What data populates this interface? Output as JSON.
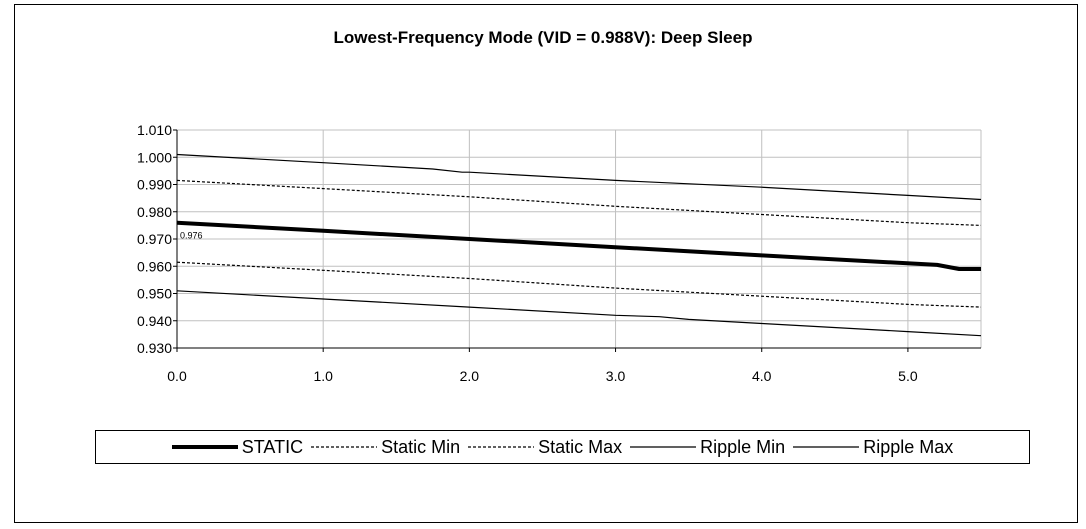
{
  "chart_data": {
    "type": "line",
    "title": "Lowest-Frequency Mode (VID = 0.988V): Deep Sleep",
    "xlabel": "",
    "ylabel": "",
    "xlim": [
      0,
      5.5
    ],
    "ylim": [
      0.93,
      1.01
    ],
    "xticks": [
      "0.0",
      "1.0",
      "2.0",
      "3.0",
      "4.0",
      "5.0"
    ],
    "yticks": [
      "1.010",
      "1.000",
      "0.990",
      "0.980",
      "0.970",
      "0.960",
      "0.950",
      "0.940",
      "0.930"
    ],
    "grid": true,
    "legend_position": "bottom",
    "annotations": [
      {
        "text": "0.976",
        "x": 0.0,
        "y": 0.976
      }
    ],
    "series": [
      {
        "name": "STATIC",
        "style": "thick-solid",
        "points": [
          [
            0.0,
            0.976
          ],
          [
            1.0,
            0.973
          ],
          [
            2.0,
            0.97
          ],
          [
            3.0,
            0.967
          ],
          [
            4.0,
            0.964
          ],
          [
            5.2,
            0.9605
          ],
          [
            5.35,
            0.959
          ],
          [
            5.5,
            0.959
          ]
        ]
      },
      {
        "name": "Static Min",
        "style": "dashed",
        "points": [
          [
            0.0,
            0.9615
          ],
          [
            1.0,
            0.9585
          ],
          [
            2.0,
            0.9555
          ],
          [
            3.0,
            0.952
          ],
          [
            4.0,
            0.949
          ],
          [
            5.0,
            0.946
          ],
          [
            5.5,
            0.945
          ]
        ]
      },
      {
        "name": "Static Max",
        "style": "dashed",
        "points": [
          [
            0.0,
            0.9915
          ],
          [
            1.0,
            0.9885
          ],
          [
            2.0,
            0.9855
          ],
          [
            3.0,
            0.982
          ],
          [
            4.0,
            0.979
          ],
          [
            5.0,
            0.976
          ],
          [
            5.5,
            0.975
          ]
        ]
      },
      {
        "name": "Ripple Min",
        "style": "thin-solid",
        "points": [
          [
            0.0,
            0.951
          ],
          [
            1.0,
            0.948
          ],
          [
            2.0,
            0.945
          ],
          [
            3.0,
            0.942
          ],
          [
            3.3,
            0.9415
          ],
          [
            3.5,
            0.9405
          ],
          [
            4.0,
            0.939
          ],
          [
            5.0,
            0.936
          ],
          [
            5.5,
            0.9345
          ]
        ]
      },
      {
        "name": "Ripple Max",
        "style": "thin-solid",
        "points": [
          [
            0.0,
            1.001
          ],
          [
            1.0,
            0.998
          ],
          [
            1.75,
            0.9957
          ],
          [
            1.95,
            0.9945
          ],
          [
            2.0,
            0.9945
          ],
          [
            3.0,
            0.9915
          ],
          [
            4.0,
            0.989
          ],
          [
            5.0,
            0.986
          ],
          [
            5.5,
            0.9845
          ]
        ]
      }
    ]
  }
}
